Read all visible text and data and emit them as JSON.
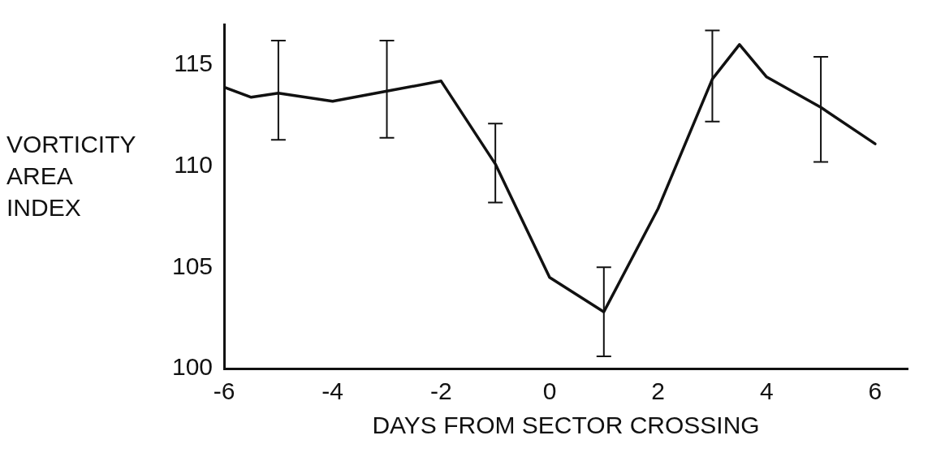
{
  "chart_data": {
    "type": "line",
    "xlabel": "DAYS FROM SECTOR CROSSING",
    "ylabel": "VORTICITY AREA INDEX",
    "x": [
      -6,
      -5.5,
      -5,
      -4,
      -3,
      -2,
      -1,
      0,
      1,
      2,
      3,
      3.5,
      4,
      5,
      6
    ],
    "series": [
      {
        "color": "#111111",
        "values": [
          113.9,
          113.4,
          113.6,
          113.2,
          113.7,
          114.2,
          110.1,
          104.5,
          102.8,
          107.9,
          114.3,
          116,
          114.4,
          112.9,
          111.1
        ],
        "errors": [
          null,
          null,
          [
            111.3,
            116.2
          ],
          null,
          [
            111.4,
            116.2
          ],
          null,
          [
            108.2,
            112.1
          ],
          null,
          [
            100.6,
            105
          ],
          null,
          [
            112.2,
            116.7
          ],
          null,
          null,
          [
            110.2,
            115.4
          ],
          null
        ]
      }
    ],
    "xlim": [
      -6,
      6.6
    ],
    "ylim": [
      100,
      117
    ],
    "xticks": [
      -6,
      -4,
      -2,
      0,
      2,
      4,
      6
    ],
    "yticks": [
      100,
      105,
      110,
      115
    ],
    "grid": false,
    "legend": false,
    "marker": "none",
    "line_style": "solid"
  }
}
